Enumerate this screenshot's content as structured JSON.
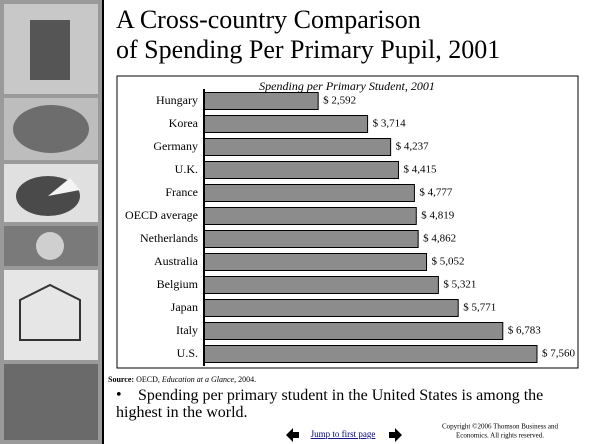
{
  "slide": {
    "title_lines": [
      "A Cross-country Comparison",
      "of Spending Per Primary Pupil, 2001"
    ],
    "source_label": "Source:",
    "source_text": "OECD, ",
    "source_italic": "Education at a Glance",
    "source_end": ", 2004.",
    "bullet": "Spending per primary student in the United States is among the highest in the world.",
    "nav_link": "Jump to first page",
    "copyright_lines": [
      "Copyright ©2006  Thomson Business and",
      "Economics. All rights reserved."
    ]
  },
  "chart_data": {
    "type": "hbar",
    "title": "Spending per Primary Student, 2001",
    "categories": [
      "Hungary",
      "Korea",
      "Germany",
      "U.K.",
      "France",
      "OECD average",
      "Netherlands",
      "Australia",
      "Belgium",
      "Japan",
      "Italy",
      "U.S."
    ],
    "values": [
      2592,
      3714,
      4237,
      4415,
      4777,
      4819,
      4862,
      5052,
      5321,
      5771,
      6783,
      7560
    ],
    "value_labels": [
      "$ 2,592",
      "$ 3,714",
      "$ 4,237",
      "$ 4,415",
      "$ 4,777",
      "$ 4,819",
      "$ 4,862",
      "$ 5,052",
      "$ 5,321",
      "$ 5,771",
      "$ 6,783",
      "$ 7,560"
    ],
    "color": "#8c8c8c"
  }
}
